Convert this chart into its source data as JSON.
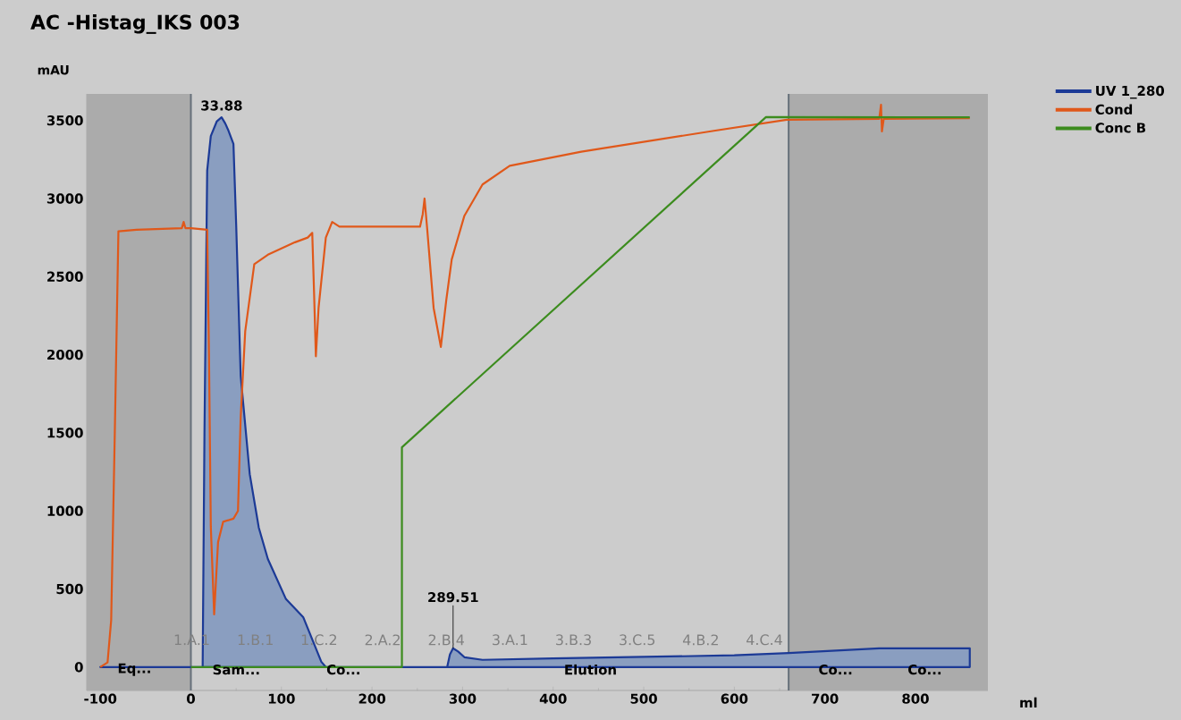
{
  "chart_data": {
    "type": "line",
    "title": "AC -Histag_IKS 003",
    "xlabel": "ml",
    "ylabel": "mAU",
    "xlim": [
      -115,
      880
    ],
    "ylim": [
      -150,
      3670
    ],
    "xticks": [
      -100,
      0,
      100,
      200,
      300,
      400,
      500,
      600,
      700,
      800
    ],
    "yticks": [
      0,
      500,
      1000,
      1500,
      2000,
      2500,
      3000,
      3500
    ],
    "legend": "top right",
    "series": [
      {
        "name": "UV 1_280",
        "type": "area",
        "color": "#1c3a96",
        "x": [
          -100,
          13,
          15,
          18,
          22,
          28.7,
          33.88,
          38,
          41.5,
          47,
          50,
          55,
          65,
          75,
          85,
          105,
          124,
          134,
          144,
          149,
          200,
          283,
          286,
          289.51,
          295,
          302,
          322,
          400,
          500,
          600,
          660,
          760,
          860
        ],
        "values": [
          0,
          0,
          1500,
          3180,
          3400,
          3495,
          3520,
          3480,
          3435,
          3350,
          2836,
          1864,
          1235,
          892,
          692,
          435,
          320,
          177,
          34,
          0,
          0,
          0,
          80,
          120,
          100,
          63,
          46,
          55,
          65,
          75,
          90,
          120,
          120
        ]
      },
      {
        "name": "Cond",
        "color": "#e0581a",
        "x": [
          -100,
          -92,
          -88,
          -84,
          -80,
          -60,
          -10,
          -8,
          -6,
          0,
          18,
          20,
          22,
          25.7,
          30,
          35.6,
          47,
          52,
          55,
          60,
          70,
          85,
          115,
          129,
          134,
          136,
          138,
          141,
          149,
          156,
          164,
          253,
          256,
          258,
          261,
          268,
          276,
          282,
          288,
          302,
          322,
          352,
          431,
          579,
          658,
          760,
          762,
          763,
          765,
          860
        ],
        "values": [
          0,
          30,
          300,
          1500,
          2790,
          2800,
          2810,
          2850,
          2810,
          2810,
          2800,
          2000,
          900,
          337,
          800,
          930,
          950,
          1000,
          1600,
          2150,
          2580,
          2640,
          2720,
          2750,
          2780,
          2400,
          1990,
          2300,
          2750,
          2850,
          2820,
          2820,
          2900,
          3000,
          2800,
          2300,
          2050,
          2350,
          2610,
          2890,
          3090,
          3210,
          3300,
          3435,
          3505,
          3510,
          3600,
          3430,
          3510,
          3515
        ]
      },
      {
        "name": "Conc B",
        "color": "#3c8c1e",
        "x": [
          0,
          233,
          233,
          635,
          860
        ],
        "values": [
          0,
          0,
          1407,
          3522,
          3520
        ]
      }
    ],
    "bands": [
      {
        "axis": "x",
        "from": -115,
        "to": 0,
        "color": "#ababab"
      },
      {
        "axis": "x",
        "from": 660,
        "to": 880,
        "color": "#ababab"
      }
    ],
    "ref_lines": [
      {
        "axis": "x",
        "value": 0,
        "color": "#66707a"
      },
      {
        "axis": "x",
        "value": 660,
        "color": "#66707a"
      }
    ],
    "annotations": [
      {
        "text": "33.88",
        "x": 33.88,
        "y": 3520
      },
      {
        "text": "289.51",
        "x": 289.51,
        "y": 120
      },
      "1.A.1",
      "1.B.1",
      "1.C.2",
      "2.A.2",
      "2.B.4",
      "3.A.1",
      "3.B.3",
      "3.C.5",
      "4.B.2",
      "4.C.4",
      "Eq...",
      "Sam...",
      "Co...",
      "Elution",
      "Co...",
      "Co..."
    ]
  }
}
